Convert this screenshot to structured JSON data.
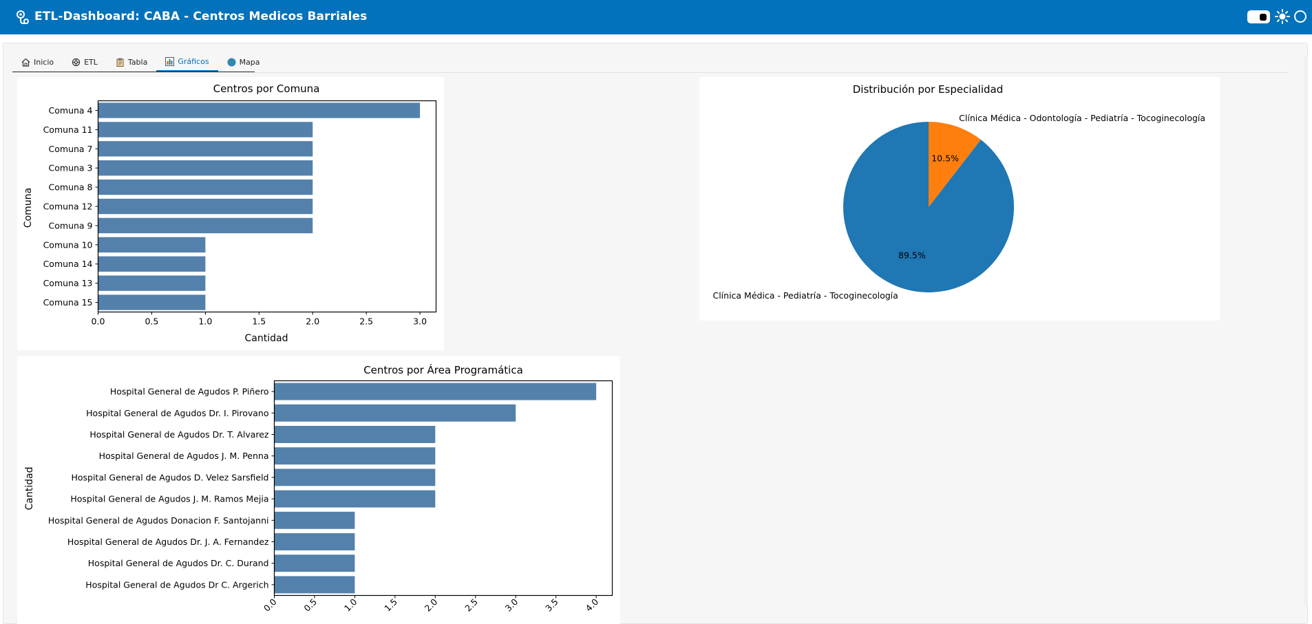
{
  "header": {
    "title": "ETL-Dashboard: CABA - Centros Medicos Barriales",
    "app_icon": "stethoscope-icon",
    "accent": "#0172bb"
  },
  "tabs": [
    {
      "label": "Inicio",
      "icon": "home-icon"
    },
    {
      "label": "ETL",
      "icon": "gear-icon"
    },
    {
      "label": "Tabla",
      "icon": "clipboard-icon"
    },
    {
      "label": "Gráficos",
      "icon": "bar-chart-icon",
      "active": true
    },
    {
      "label": "Mapa",
      "icon": "globe-icon"
    }
  ],
  "chart_data": [
    {
      "type": "bar",
      "orientation": "horizontal",
      "title": "Centros por Comuna",
      "xlabel": "Cantidad",
      "ylabel": "Comuna",
      "categories": [
        "Comuna 4",
        "Comuna 11",
        "Comuna 7",
        "Comuna 3",
        "Comuna 8",
        "Comuna 12",
        "Comuna 9",
        "Comuna 10",
        "Comuna 14",
        "Comuna 13",
        "Comuna 15"
      ],
      "values": [
        3,
        2,
        2,
        2,
        2,
        2,
        2,
        1,
        1,
        1,
        1
      ],
      "xlim": [
        0,
        3.15
      ],
      "xticks": [
        "0.0",
        "0.5",
        "1.0",
        "1.5",
        "2.0",
        "2.5",
        "3.0"
      ],
      "bar_color": "#5381ab",
      "grid": false
    },
    {
      "type": "pie",
      "title": "Distribución por Especialidad",
      "labels": [
        "Clínica Médica - Pediatría - Tocoginecología",
        "Clínica Médica - Odontología - Pediatría - Tocoginecología"
      ],
      "values": [
        89.5,
        10.5
      ],
      "value_labels": [
        "89.5%",
        "10.5%"
      ],
      "colors": [
        "#1f77b4",
        "#ff7f0e"
      ]
    },
    {
      "type": "bar",
      "orientation": "horizontal",
      "title": "Centros por Área Programática",
      "xlabel": "",
      "ylabel": "Cantidad",
      "categories": [
        "Hospital General de Agudos P. Piñero",
        "Hospital General de Agudos Dr. I. Pirovano",
        "Hospital General de Agudos Dr. T. Alvarez",
        "Hospital General de Agudos J. M. Penna",
        "Hospital General de Agudos D. Velez Sarsfield",
        "Hospital General de Agudos J. M. Ramos Mejia",
        "Hospital General de Agudos Donacion F. Santojanni",
        "Hospital General de Agudos Dr. J. A. Fernandez",
        "Hospital General de Agudos Dr. C. Durand",
        "Hospital General de Agudos Dr C. Argerich"
      ],
      "values": [
        4,
        3,
        2,
        2,
        2,
        2,
        1,
        1,
        1,
        1
      ],
      "xlim": [
        0,
        4.2
      ],
      "xticks": [
        "0.0",
        "0.5",
        "1.0",
        "1.5",
        "2.0",
        "2.5",
        "3.0",
        "3.5",
        "4.0"
      ],
      "xtick_rotation": 45,
      "bar_color": "#5381ab",
      "grid": false
    }
  ]
}
